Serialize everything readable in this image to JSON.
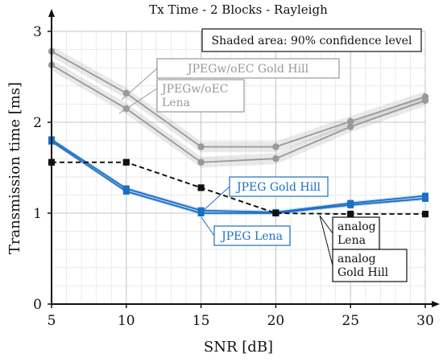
{
  "chart_data": {
    "type": "line",
    "title": "Tx Time - 2 Blocks - Rayleigh",
    "xlabel": "SNR [dB]",
    "ylabel": "Transmission time [ms]",
    "xlim": [
      5,
      30
    ],
    "ylim": [
      0,
      3
    ],
    "xticks": [
      5,
      10,
      15,
      20,
      25,
      30
    ],
    "yticks": [
      0,
      1,
      2,
      3
    ],
    "grid": "major and minor",
    "note": "Shaded area: 90% confidence level",
    "x": [
      5,
      10,
      15,
      20,
      25,
      30
    ],
    "series": [
      {
        "key": "jpeg_woec_goldhill",
        "color": "#999999",
        "marker": "circle",
        "dash": false,
        "band": 0.06,
        "values": [
          2.78,
          2.32,
          1.73,
          1.73,
          2.01,
          2.28
        ]
      },
      {
        "key": "jpeg_woec_lena",
        "color": "#999999",
        "marker": "circle",
        "dash": false,
        "band": 0.06,
        "values": [
          2.63,
          2.15,
          1.56,
          1.6,
          1.95,
          2.24
        ]
      },
      {
        "key": "jpeg_goldhill",
        "color": "#1a6fc4",
        "marker": "square",
        "dash": false,
        "band": 0.02,
        "values": [
          1.81,
          1.27,
          1.03,
          1.01,
          1.11,
          1.19
        ]
      },
      {
        "key": "jpeg_lena",
        "color": "#1a6fc4",
        "marker": "square",
        "dash": false,
        "band": 0.02,
        "values": [
          1.79,
          1.24,
          1.0,
          1.0,
          1.09,
          1.16
        ]
      },
      {
        "key": "analog_lena",
        "color": "#111111",
        "marker": "square",
        "dash": true,
        "band": 0,
        "values": [
          1.56,
          1.56,
          1.28,
          1.0,
          0.99,
          0.99
        ]
      },
      {
        "key": "analog_goldhill",
        "color": "#111111",
        "marker": "square",
        "dash": true,
        "band": 0,
        "values": [
          1.56,
          1.56,
          1.28,
          1.0,
          0.99,
          0.99
        ]
      }
    ],
    "annotations": [
      {
        "key": "woec_goldhill",
        "lines": [
          "JPEGw/oEC Gold Hill"
        ],
        "color": "#999999"
      },
      {
        "key": "woec_lena",
        "lines": [
          "JPEGw/oEC",
          "Lena"
        ],
        "color": "#999999"
      },
      {
        "key": "jpeg_goldhill",
        "lines": [
          "JPEG Gold Hill"
        ],
        "color": "#1a6fc4"
      },
      {
        "key": "jpeg_lena",
        "lines": [
          "JPEG Lena"
        ],
        "color": "#1a6fc4"
      },
      {
        "key": "analog_lena",
        "lines": [
          "analog",
          "Lena"
        ],
        "color": "#111111"
      },
      {
        "key": "analog_goldhill",
        "lines": [
          "analog",
          "Gold Hill"
        ],
        "color": "#111111"
      }
    ]
  }
}
